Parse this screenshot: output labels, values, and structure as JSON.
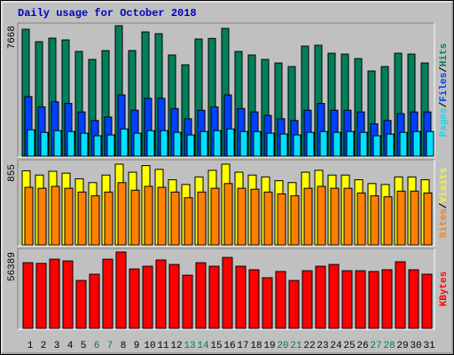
{
  "chart_data": [
    {
      "type": "bar",
      "title": "Daily usage for October 2018",
      "separator": "/",
      "weekend_days": [
        6,
        7,
        13,
        14,
        20,
        21,
        27,
        28
      ],
      "weekend_color": "#008040",
      "day_color": "#000000",
      "ylim": [
        0,
        7668
      ],
      "yticks": [
        7668
      ],
      "series": [
        {
          "name": "Hits",
          "color": "#00805c",
          "values": [
            7460,
            6729,
            6938,
            6833,
            6155,
            5686,
            6207,
            7668,
            6210,
            7303,
            7199,
            5947,
            5373,
            6886,
            6920,
            7512,
            6155,
            5947,
            5686,
            5477,
            5269,
            6468,
            6521,
            6051,
            5999,
            5738,
            5008,
            5269,
            6051,
            5999,
            5477
          ]
        },
        {
          "name": "Files",
          "color": "#0040ff",
          "values": [
            3500,
            2900,
            3200,
            3100,
            2600,
            2100,
            2300,
            3600,
            2700,
            3400,
            3400,
            2800,
            2200,
            2700,
            2900,
            3600,
            2800,
            2600,
            2400,
            2200,
            2100,
            2700,
            3100,
            2700,
            2700,
            2600,
            1900,
            2100,
            2500,
            2600,
            2600
          ]
        },
        {
          "name": "Pages",
          "color": "#00e0ff",
          "values": [
            1550,
            1400,
            1500,
            1450,
            1350,
            1200,
            1250,
            1600,
            1350,
            1500,
            1500,
            1400,
            1250,
            1450,
            1500,
            1600,
            1450,
            1450,
            1350,
            1300,
            1250,
            1400,
            1450,
            1400,
            1450,
            1400,
            1200,
            1300,
            1400,
            1450,
            1450
          ]
        }
      ]
    },
    {
      "type": "bar",
      "separator": "/",
      "ylim": [
        0,
        855
      ],
      "yticks": [
        855
      ],
      "series": [
        {
          "name": "Visits",
          "color": "#ffff00",
          "values": [
            785,
            740,
            780,
            760,
            700,
            660,
            740,
            855,
            770,
            840,
            800,
            690,
            640,
            720,
            790,
            855,
            770,
            740,
            720,
            680,
            660,
            770,
            790,
            740,
            740,
            690,
            650,
            640,
            720,
            720,
            690
          ]
        },
        {
          "name": "Sites",
          "color": "#ff8000",
          "values": [
            610,
            600,
            620,
            600,
            560,
            520,
            560,
            660,
            580,
            620,
            610,
            560,
            500,
            560,
            600,
            650,
            600,
            590,
            560,
            540,
            520,
            600,
            620,
            600,
            600,
            550,
            520,
            510,
            570,
            570,
            550
          ]
        }
      ]
    },
    {
      "type": "bar",
      "ylim": [
        0,
        56389
      ],
      "yticks": [
        56389
      ],
      "categories": [
        "1",
        "2",
        "3",
        "4",
        "5",
        "6",
        "7",
        "8",
        "9",
        "10",
        "11",
        "12",
        "13",
        "14",
        "15",
        "16",
        "17",
        "18",
        "19",
        "20",
        "21",
        "22",
        "23",
        "24",
        "25",
        "26",
        "27",
        "28",
        "29",
        "30",
        "31"
      ],
      "series": [
        {
          "name": "KBytes",
          "color": "#ff0000",
          "values": [
            48520,
            48000,
            51100,
            49800,
            35400,
            40000,
            51100,
            56389,
            43900,
            45900,
            50500,
            47200,
            39300,
            48500,
            45900,
            52400,
            45900,
            43300,
            37400,
            42000,
            35400,
            42600,
            45900,
            47200,
            42600,
            42600,
            42000,
            43300,
            49200,
            43300,
            40000
          ]
        }
      ]
    }
  ]
}
